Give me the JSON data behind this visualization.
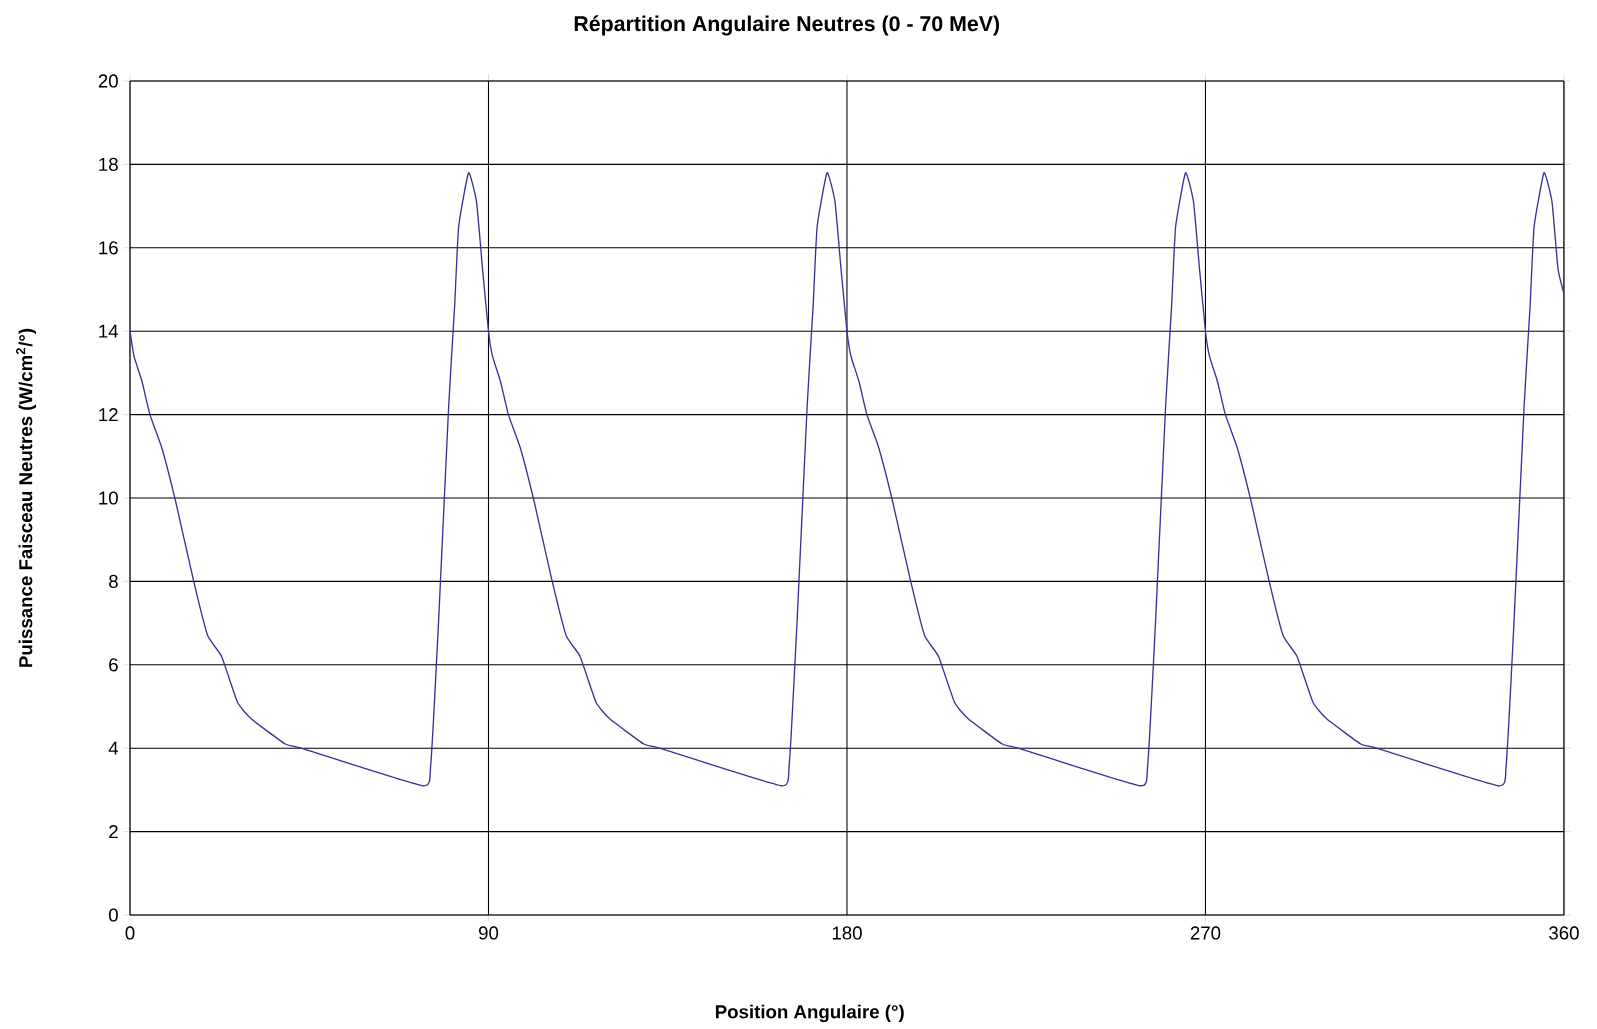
{
  "chart_data": {
    "type": "line",
    "title": "Répartition Angulaire Neutres (0 - 70 MeV)",
    "xlabel": "Position Angulaire  (°)",
    "ylabel": "Puissance Faisceau  Neutres  (W/cm$^{2}$/°)",
    "xlim": [
      0,
      360
    ],
    "xticks": [
      0,
      90,
      180,
      270,
      360
    ],
    "ylim": [
      0,
      20
    ],
    "yticks": [
      0,
      2,
      4,
      6,
      8,
      10,
      12,
      14,
      16,
      18,
      20
    ],
    "grid": true,
    "marker": "none",
    "line_style": "solid",
    "series": [
      {
        "color": "#333399",
        "x": [
          0,
          1,
          3,
          5,
          8,
          11.5,
          16,
          19.5,
          23,
          27,
          30.5,
          39,
          43,
          73.5,
          75.5,
          77.5,
          80,
          81.5,
          82.5,
          85,
          87,
          88.5,
          90,
          91,
          93,
          95,
          98,
          101.5,
          106,
          109.5,
          113,
          117,
          120.5,
          129,
          133,
          163.5,
          165.5,
          167.5,
          170,
          171.5,
          172.5,
          175,
          177,
          178.5,
          180,
          181,
          183,
          185,
          188,
          191.5,
          196,
          199.5,
          203,
          207,
          210.5,
          219,
          223,
          253.5,
          255.5,
          257.5,
          260,
          261.5,
          262.5,
          265,
          267,
          268.5,
          270,
          271,
          273,
          275,
          278,
          281.5,
          286,
          289.5,
          293,
          297,
          300.5,
          309,
          313,
          343.5,
          345.5,
          347.5,
          350,
          351.5,
          352.5,
          355,
          357,
          358.5,
          360
        ],
        "values": [
          14.0,
          13.4,
          12.8,
          12.0,
          11.2,
          9.9,
          8.0,
          6.7,
          6.2,
          5.1,
          4.7,
          4.1,
          4.0,
          3.1,
          3.6,
          7.1,
          12.2,
          14.6,
          16.5,
          17.8,
          17.1,
          15.5,
          14.0,
          13.4,
          12.8,
          12.0,
          11.2,
          9.9,
          8.0,
          6.7,
          6.2,
          5.1,
          4.7,
          4.1,
          4.0,
          3.1,
          3.6,
          7.1,
          12.2,
          14.6,
          16.5,
          17.8,
          17.1,
          15.5,
          14.0,
          13.4,
          12.8,
          12.0,
          11.2,
          9.9,
          8.0,
          6.7,
          6.2,
          5.1,
          4.7,
          4.1,
          4.0,
          3.1,
          3.6,
          7.1,
          12.2,
          14.6,
          16.5,
          17.8,
          17.1,
          15.5,
          14.0,
          13.4,
          12.8,
          12.0,
          11.2,
          9.9,
          8.0,
          6.7,
          6.2,
          5.1,
          4.7,
          4.1,
          4.0,
          3.1,
          3.6,
          7.1,
          12.2,
          14.6,
          16.5,
          17.8,
          17.1,
          15.5,
          14.9
        ]
      }
    ]
  }
}
